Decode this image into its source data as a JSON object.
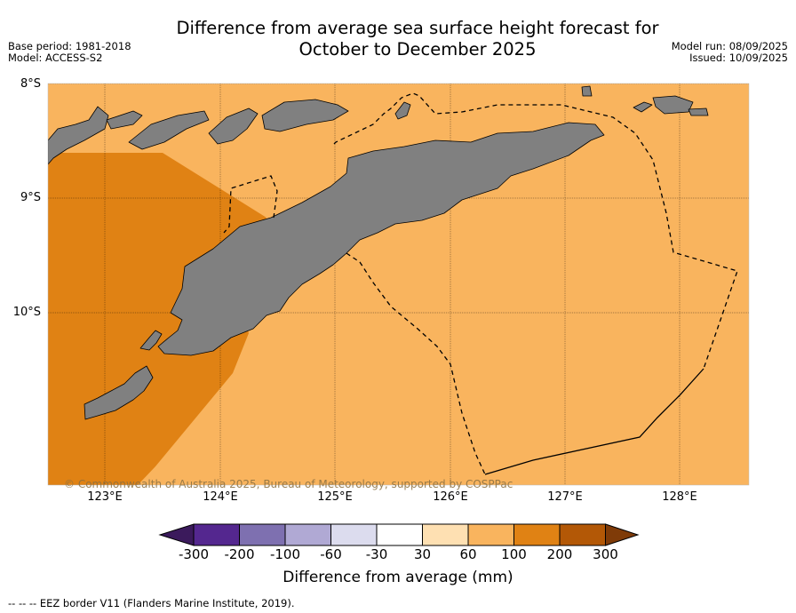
{
  "title_line1": "Difference from average sea surface height forecast for",
  "title_line2": "October to December 2025",
  "base_period": "Base period: 1981-2018",
  "model": "Model: ACCESS-S2",
  "model_run": "Model run: 08/09/2025",
  "issued": "Issued: 10/09/2025",
  "lat_labels": [
    "8°S",
    "9°S",
    "10°S"
  ],
  "lon_labels": [
    "123°E",
    "124°E",
    "125°E",
    "126°E",
    "127°E",
    "128°E"
  ],
  "copyright": "© Commonwealth of Australia 2025, Bureau of Meteorology, supported by COSPPac",
  "colorbar": {
    "title": "Difference from average (mm)",
    "ticks": [
      "-300",
      "-200",
      "-100",
      "-60",
      "-30",
      "30",
      "60",
      "100",
      "200",
      "300"
    ],
    "colors": [
      "#3b1a5c",
      "#54278f",
      "#7e70b0",
      "#b0a9d4",
      "#dcdcee",
      "#ffffff",
      "#fee0b2",
      "#f9b45e",
      "#e08214",
      "#b35806",
      "#7f3b08"
    ]
  },
  "colors": {
    "land": "#808080",
    "band_60_100": "#f9b45e",
    "band_100_200": "#e08214"
  },
  "footnote": "--  --  -- EEZ border V11 (Flanders Marine Institute, 2019)."
}
